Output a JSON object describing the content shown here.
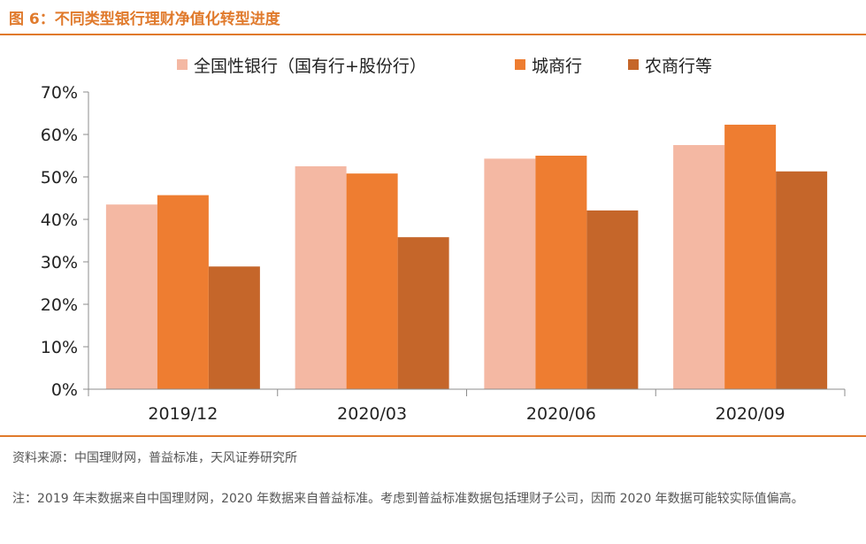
{
  "title": "图 6：不同类型银行理财净值化转型进度",
  "source": "资料来源：中国理财网，普益标准，天风证券研究所",
  "note": "注：2019 年末数据来自中国理财网，2020 年数据来自普益标准。考虑到普益标准数据包括理财子公司，因而 2020 年数据可能较实际值偏高。",
  "colors": {
    "accent": "#e07a2c"
  },
  "chart_data": {
    "type": "bar",
    "title": "",
    "xlabel": "",
    "ylabel": "",
    "categories": [
      "2019/12",
      "2020/03",
      "2020/06",
      "2020/09"
    ],
    "series": [
      {
        "name": "全国性银行（国有行+股份行）",
        "color": "#f4b8a3",
        "values": [
          43.5,
          52.5,
          54.3,
          57.5
        ]
      },
      {
        "name": "城商行",
        "color": "#ee7d31",
        "values": [
          45.7,
          50.8,
          55.0,
          62.3
        ]
      },
      {
        "name": "农商行等",
        "color": "#c5662a",
        "values": [
          28.9,
          35.8,
          42.1,
          51.3
        ]
      }
    ],
    "ylim": [
      0,
      70
    ],
    "yticks": [
      "0%",
      "10%",
      "20%",
      "30%",
      "40%",
      "50%",
      "60%",
      "70%"
    ],
    "legend_position": "top",
    "grid": false
  }
}
